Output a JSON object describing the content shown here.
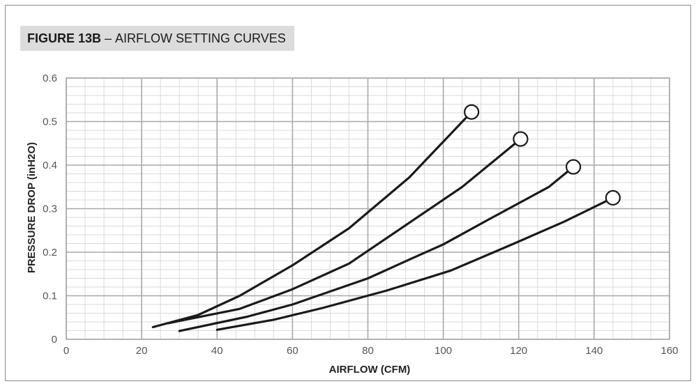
{
  "figure": {
    "number_label": "FIGURE 13B",
    "separator": " – ",
    "title_label": "AIRFLOW SETTING CURVES"
  },
  "chart_data": {
    "type": "line",
    "title": "FIGURE 13B – AIRFLOW SETTING CURVES",
    "xlabel": "AIRFLOW (CFM)",
    "ylabel": "PRESSURE DROP (inH2O)",
    "xlim": [
      0,
      160
    ],
    "ylim": [
      0,
      0.6
    ],
    "xticks": [
      0,
      20,
      40,
      60,
      80,
      100,
      120,
      140,
      160
    ],
    "xtick_labels": [
      "0",
      "20",
      "40",
      "60",
      "80",
      "100",
      "120",
      "140",
      "160"
    ],
    "yticks": [
      0,
      0.1,
      0.2,
      0.3,
      0.4,
      0.5,
      0.6
    ],
    "ytick_labels": [
      "0",
      "0.1",
      "0.2",
      "0.3",
      "0.4",
      "0.5",
      "0.6"
    ],
    "grid": true,
    "legend": "none",
    "line_color": "#1a1a1a",
    "series": [
      {
        "x": [
          23,
          35,
          46,
          60,
          75,
          91,
          107.5
        ],
        "y": [
          0.028,
          0.056,
          0.1,
          0.17,
          0.255,
          0.372,
          0.522
        ],
        "end_marker": "circle"
      },
      {
        "x": [
          27,
          46,
          60,
          75,
          90,
          105,
          120.5
        ],
        "y": [
          0.037,
          0.07,
          0.115,
          0.174,
          0.262,
          0.35,
          0.46
        ],
        "end_marker": "circle"
      },
      {
        "x": [
          30,
          48,
          60,
          80,
          92,
          100,
          112,
          128,
          134.5
        ],
        "y": [
          0.019,
          0.052,
          0.08,
          0.14,
          0.187,
          0.218,
          0.275,
          0.35,
          0.396
        ],
        "end_marker": "circle"
      },
      {
        "x": [
          40,
          55,
          68,
          85,
          102,
          118,
          132,
          145
        ],
        "y": [
          0.022,
          0.045,
          0.072,
          0.112,
          0.158,
          0.217,
          0.27,
          0.325
        ],
        "end_marker": "circle"
      }
    ]
  }
}
